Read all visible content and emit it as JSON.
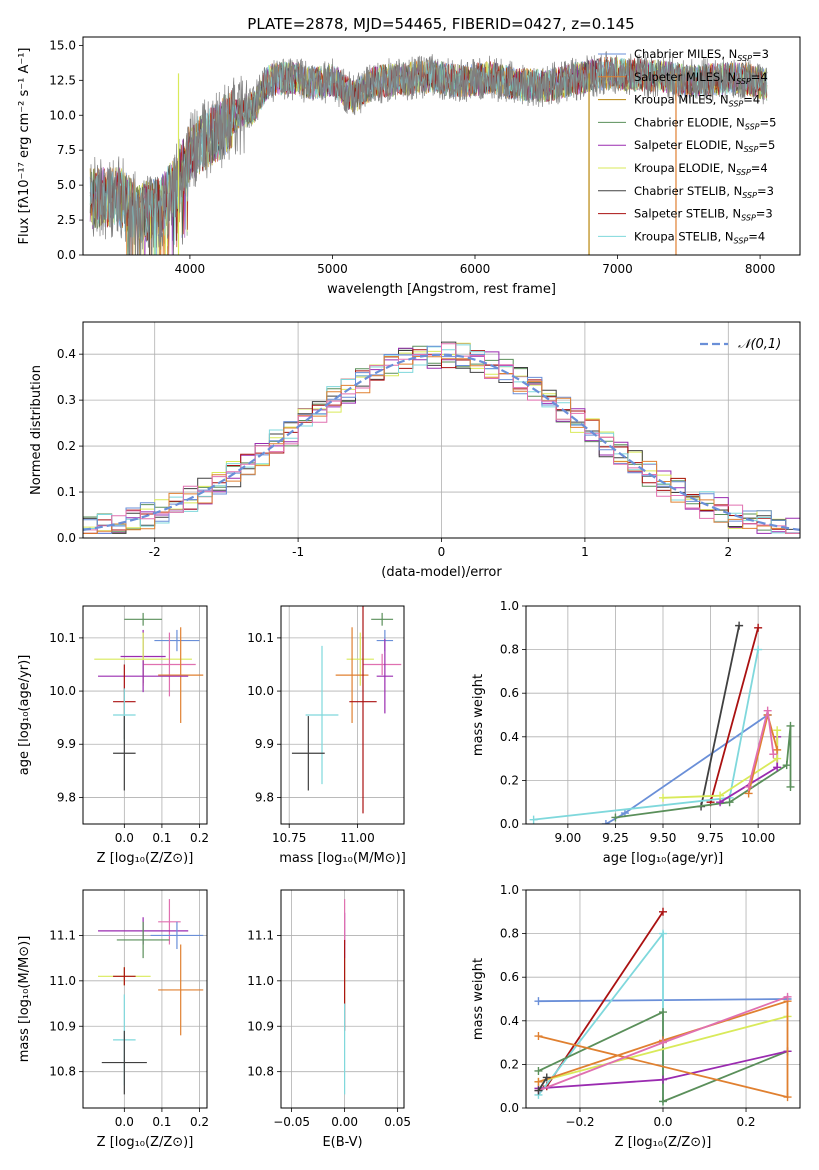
{
  "figure": {
    "title": "PLATE=2878, MJD=54465, FIBERID=0427, z=0.145",
    "colors": [
      "#5a8f5a",
      "#9a2bb0",
      "#d9ea5a",
      "#404040",
      "#aa1111",
      "#7fd8dc",
      "#6a8fd8",
      "#e08030",
      "#e070b0"
    ]
  },
  "chart_data": [
    {
      "id": "spectrum",
      "type": "line",
      "xlabel": "wavelength [Angstrom, rest frame]",
      "ylabel": "Flux [fλ10⁻¹⁷ erg cm⁻² s⁻¹ A⁻¹]",
      "xlim": [
        3250,
        8280
      ],
      "ylim": [
        0,
        15.6
      ],
      "xticks": [
        4000,
        5000,
        6000,
        7000,
        8000
      ],
      "yticks": [
        0.0,
        2.5,
        5.0,
        7.5,
        10.0,
        12.5,
        15.0
      ],
      "continuum": [
        [
          3300,
          4.0
        ],
        [
          3500,
          4.2
        ],
        [
          3650,
          3.0
        ],
        [
          3800,
          3.5
        ],
        [
          3900,
          5.0
        ],
        [
          4000,
          7.3
        ],
        [
          4100,
          8.2
        ],
        [
          4200,
          8.9
        ],
        [
          4300,
          9.8
        ],
        [
          4450,
          10.6
        ],
        [
          4550,
          12.5
        ],
        [
          4700,
          12.7
        ],
        [
          4850,
          12.3
        ],
        [
          5000,
          12.5
        ],
        [
          5150,
          11.3
        ],
        [
          5300,
          12.4
        ],
        [
          5500,
          12.6
        ],
        [
          5700,
          12.8
        ],
        [
          5900,
          12.4
        ],
        [
          6100,
          12.7
        ],
        [
          6300,
          12.2
        ],
        [
          6500,
          12.1
        ],
        [
          6700,
          12.6
        ],
        [
          6900,
          13.0
        ],
        [
          7100,
          12.9
        ],
        [
          7300,
          12.8
        ],
        [
          7500,
          12.4
        ],
        [
          7700,
          12.6
        ],
        [
          7900,
          12.6
        ],
        [
          8050,
          12.2
        ]
      ],
      "legend_position": "upper right",
      "series": [
        {
          "name": "Chabrier MILES, N_SSP=3",
          "color": "#6a8fd8"
        },
        {
          "name": "Salpeter MILES, N_SSP=4",
          "color": "#e08030"
        },
        {
          "name": "Kroupa MILES, N_SSP=4",
          "color": "#b8860b"
        },
        {
          "name": "Chabrier ELODIE, N_SSP=5",
          "color": "#5a8f5a"
        },
        {
          "name": "Salpeter ELODIE, N_SSP=5",
          "color": "#9a2bb0"
        },
        {
          "name": "Kroupa ELODIE, N_SSP=4",
          "color": "#d9ea5a"
        },
        {
          "name": "Chabrier STELIB, N_SSP=3",
          "color": "#404040"
        },
        {
          "name": "Salpeter STELIB, N_SSP=3",
          "color": "#aa1111"
        },
        {
          "name": "Kroupa STELIB, N_SSP=4",
          "color": "#7fd8dc"
        }
      ]
    },
    {
      "id": "histogram",
      "type": "line",
      "xlabel": "(data-model)/error",
      "ylabel": "Normed distribution",
      "xlim": [
        -2.5,
        2.5
      ],
      "ylim": [
        0,
        0.47
      ],
      "xticks": [
        -2,
        -1,
        0,
        1,
        2
      ],
      "yticks": [
        0.0,
        0.1,
        0.2,
        0.3,
        0.4
      ],
      "grid": true,
      "legend": "𝒩(0,1)",
      "legend_position": "upper right",
      "gaussian": {
        "mu": 0,
        "sigma": 1
      }
    },
    {
      "id": "age_vs_Z",
      "type": "scatter",
      "xlabel": "Z [log₁₀(Z/Z⊙)]",
      "ylabel": "age  [log₁₀(age/yr)]",
      "xlim": [
        -0.11,
        0.22
      ],
      "ylim": [
        9.75,
        10.16
      ],
      "xticks": [
        0.0,
        0.1,
        0.2
      ],
      "yticks": [
        9.8,
        9.9,
        10.0,
        10.1
      ],
      "grid": true,
      "points": [
        {
          "x": 0.05,
          "y": 10.135,
          "xerr": 0.05,
          "yerr": 0.012,
          "color": "#5a8f5a"
        },
        {
          "x": 0.14,
          "y": 10.095,
          "xerr": 0.06,
          "yerr": 0.02,
          "color": "#6a8fd8"
        },
        {
          "x": 0.05,
          "y": 10.065,
          "xerr": 0.06,
          "yerr": 0.05,
          "color": "#9a2bb0"
        },
        {
          "x": 0.05,
          "y": 10.06,
          "xerr": 0.13,
          "yerr": 0.05,
          "color": "#d9ea5a"
        },
        {
          "x": 0.12,
          "y": 10.05,
          "xerr": 0.07,
          "yerr": 0.06,
          "color": "#e070b0"
        },
        {
          "x": 0.15,
          "y": 10.03,
          "xerr": 0.06,
          "yerr": 0.09,
          "color": "#e08030"
        },
        {
          "x": 0.05,
          "y": 10.028,
          "xerr": 0.12,
          "yerr": 0.03,
          "color": "#9a2bb0"
        },
        {
          "x": 0.0,
          "y": 9.98,
          "xerr": 0.03,
          "yerr": 0.07,
          "color": "#aa1111"
        },
        {
          "x": 0.0,
          "y": 9.955,
          "xerr": 0.03,
          "yerr": 0.05,
          "color": "#7fd8dc"
        },
        {
          "x": 0.0,
          "y": 9.883,
          "xerr": 0.03,
          "yerr": 0.07,
          "color": "#404040"
        }
      ]
    },
    {
      "id": "age_vs_mass",
      "type": "scatter",
      "xlabel": "mass [log₁₀(M/M⊙)]",
      "ylabel": "",
      "xlim": [
        10.72,
        11.17
      ],
      "ylim": [
        9.75,
        10.16
      ],
      "xticks": [
        10.75,
        11.0
      ],
      "yticks": [
        9.8,
        9.9,
        10.0,
        10.1
      ],
      "grid": true,
      "points": [
        {
          "x": 11.09,
          "y": 10.135,
          "xerr": 0.04,
          "yerr": 0.012,
          "color": "#5a8f5a"
        },
        {
          "x": 11.1,
          "y": 10.095,
          "xerr": 0.03,
          "yerr": 0.02,
          "color": "#6a8fd8"
        },
        {
          "x": 11.09,
          "y": 10.05,
          "xerr": 0.07,
          "yerr": 0.02,
          "color": "#e070b0"
        },
        {
          "x": 11.01,
          "y": 10.06,
          "xerr": 0.05,
          "yerr": 0.05,
          "color": "#d9ea5a"
        },
        {
          "x": 10.98,
          "y": 10.03,
          "xerr": 0.06,
          "yerr": 0.09,
          "color": "#e08030"
        },
        {
          "x": 11.1,
          "y": 10.028,
          "xerr": 0.03,
          "yerr": 0.07,
          "color": "#9a2bb0"
        },
        {
          "x": 11.02,
          "y": 9.98,
          "xerr": 0.05,
          "yerr": 0.21,
          "color": "#aa1111"
        },
        {
          "x": 10.87,
          "y": 9.955,
          "xerr": 0.06,
          "yerr": 0.13,
          "color": "#7fd8dc"
        },
        {
          "x": 10.82,
          "y": 9.883,
          "xerr": 0.06,
          "yerr": 0.07,
          "color": "#404040"
        }
      ]
    },
    {
      "id": "massweight_vs_age",
      "type": "line",
      "xlabel": "age  [log₁₀(age/yr)]",
      "ylabel": "mass weight",
      "xlim": [
        8.78,
        10.22
      ],
      "ylim": [
        0,
        1.0
      ],
      "xticks": [
        9.0,
        9.25,
        9.5,
        9.75,
        10.0
      ],
      "yticks": [
        0.0,
        0.2,
        0.4,
        0.6,
        0.8,
        1.0
      ],
      "grid": true,
      "series": [
        {
          "color": "#6a8fd8",
          "points": [
            [
              9.2,
              0.0
            ],
            [
              9.3,
              0.05
            ],
            [
              10.05,
              0.5
            ]
          ]
        },
        {
          "color": "#404040",
          "points": [
            [
              9.7,
              0.08
            ],
            [
              9.9,
              0.91
            ]
          ]
        },
        {
          "color": "#aa1111",
          "points": [
            [
              9.75,
              0.1
            ],
            [
              10.0,
              0.9
            ]
          ]
        },
        {
          "color": "#7fd8dc",
          "points": [
            [
              8.82,
              0.02
            ],
            [
              9.85,
              0.12
            ],
            [
              10.0,
              0.8
            ]
          ]
        },
        {
          "color": "#5a8f5a",
          "points": [
            [
              9.25,
              0.03
            ],
            [
              9.85,
              0.1
            ],
            [
              10.15,
              0.27
            ],
            [
              10.17,
              0.45
            ],
            [
              10.17,
              0.17
            ]
          ]
        },
        {
          "color": "#9a2bb0",
          "points": [
            [
              9.8,
              0.1
            ],
            [
              10.1,
              0.26
            ],
            [
              10.1,
              0.4
            ]
          ]
        },
        {
          "color": "#d9ea5a",
          "points": [
            [
              9.5,
              0.12
            ],
            [
              9.8,
              0.13
            ],
            [
              10.1,
              0.3
            ],
            [
              10.1,
              0.43
            ]
          ]
        },
        {
          "color": "#e08030",
          "points": [
            [
              9.95,
              0.14
            ],
            [
              10.05,
              0.5
            ],
            [
              10.1,
              0.34
            ]
          ]
        },
        {
          "color": "#e070b0",
          "points": [
            [
              9.95,
              0.17
            ],
            [
              10.05,
              0.52
            ],
            [
              10.08,
              0.32
            ]
          ]
        }
      ]
    },
    {
      "id": "mass_vs_Z",
      "type": "scatter",
      "xlabel": "Z [log₁₀(Z/Z⊙)]",
      "ylabel": "mass [log₁₀(M/M⊙)]",
      "xlim": [
        -0.11,
        0.22
      ],
      "ylim": [
        10.72,
        11.2
      ],
      "xticks": [
        0.0,
        0.1,
        0.2
      ],
      "yticks": [
        10.8,
        10.9,
        11.0,
        11.1
      ],
      "grid": true,
      "points": [
        {
          "x": 0.12,
          "y": 11.13,
          "xerr": 0.03,
          "yerr": 0.05,
          "color": "#e070b0"
        },
        {
          "x": 0.05,
          "y": 11.11,
          "xerr": 0.12,
          "yerr": 0.03,
          "color": "#9a2bb0"
        },
        {
          "x": 0.14,
          "y": 11.1,
          "xerr": 0.07,
          "yerr": 0.03,
          "color": "#6a8fd8"
        },
        {
          "x": 0.05,
          "y": 11.09,
          "xerr": 0.07,
          "yerr": 0.04,
          "color": "#5a8f5a"
        },
        {
          "x": 0.0,
          "y": 11.01,
          "xerr": 0.07,
          "yerr": 0.02,
          "color": "#d9ea5a"
        },
        {
          "x": 0.0,
          "y": 11.01,
          "xerr": 0.03,
          "yerr": 0.02,
          "color": "#aa1111"
        },
        {
          "x": 0.15,
          "y": 10.98,
          "xerr": 0.06,
          "yerr": 0.1,
          "color": "#e08030"
        },
        {
          "x": 0.0,
          "y": 10.87,
          "xerr": 0.03,
          "yerr": 0.1,
          "color": "#7fd8dc"
        },
        {
          "x": 0.0,
          "y": 10.82,
          "xerr": 0.06,
          "yerr": 0.07,
          "color": "#404040"
        }
      ]
    },
    {
      "id": "mass_vs_ebv",
      "type": "scatter",
      "xlabel": "E(B-V)",
      "ylabel": "",
      "xlim": [
        -0.06,
        0.056
      ],
      "ylim": [
        10.72,
        11.2
      ],
      "xticks": [
        -0.05,
        0.0,
        0.05
      ],
      "yticks": [
        10.8,
        10.9,
        11.0,
        11.1
      ],
      "grid": true,
      "points": [
        {
          "x": 0.0,
          "y": 11.1,
          "yerr": 0.05,
          "color": "#9a2bb0"
        },
        {
          "x": 0.0,
          "y": 11.13,
          "yerr": 0.05,
          "color": "#e070b0"
        },
        {
          "x": 0.0,
          "y": 11.0,
          "yerr": 0.05,
          "color": "#d9ea5a"
        },
        {
          "x": 0.0,
          "y": 10.99,
          "yerr": 0.1,
          "color": "#aa1111"
        },
        {
          "x": 0.0,
          "y": 10.85,
          "yerr": 0.1,
          "color": "#7fd8dc"
        }
      ]
    },
    {
      "id": "massweight_vs_Z",
      "type": "line",
      "xlabel": "Z [log₁₀(Z/Z⊙)]",
      "ylabel": "mass weight",
      "xlim": [
        -0.33,
        0.33
      ],
      "ylim": [
        0,
        1.0
      ],
      "xticks": [
        -0.2,
        0.0,
        0.2
      ],
      "yticks": [
        0.0,
        0.2,
        0.4,
        0.6,
        0.8,
        1.0
      ],
      "grid": true,
      "series": [
        {
          "color": "#6a8fd8",
          "points": [
            [
              -0.3,
              0.49
            ],
            [
              0.3,
              0.5
            ]
          ]
        },
        {
          "color": "#aa1111",
          "points": [
            [
              -0.28,
              0.1
            ],
            [
              0.0,
              0.9
            ]
          ]
        },
        {
          "color": "#7fd8dc",
          "points": [
            [
              -0.3,
              0.06
            ],
            [
              0.0,
              0.8
            ],
            [
              0.0,
              0.03
            ]
          ]
        },
        {
          "color": "#5a8f5a",
          "points": [
            [
              -0.3,
              0.17
            ],
            [
              0.0,
              0.44
            ],
            [
              0.0,
              0.03
            ],
            [
              0.3,
              0.26
            ]
          ]
        },
        {
          "color": "#9a2bb0",
          "points": [
            [
              -0.3,
              0.09
            ],
            [
              0.0,
              0.13
            ],
            [
              0.3,
              0.26
            ]
          ]
        },
        {
          "color": "#d9ea5a",
          "points": [
            [
              -0.3,
              0.12
            ],
            [
              0.3,
              0.42
            ]
          ]
        },
        {
          "color": "#e08030",
          "points": [
            [
              -0.3,
              0.12
            ],
            [
              0.0,
              0.31
            ],
            [
              0.3,
              0.49
            ],
            [
              0.3,
              0.05
            ],
            [
              -0.3,
              0.33
            ]
          ]
        },
        {
          "color": "#e070b0",
          "points": [
            [
              -0.3,
              0.08
            ],
            [
              0.0,
              0.3
            ],
            [
              0.3,
              0.51
            ]
          ]
        },
        {
          "color": "#404040",
          "points": [
            [
              -0.3,
              0.08
            ],
            [
              -0.28,
              0.14
            ]
          ]
        }
      ]
    }
  ]
}
